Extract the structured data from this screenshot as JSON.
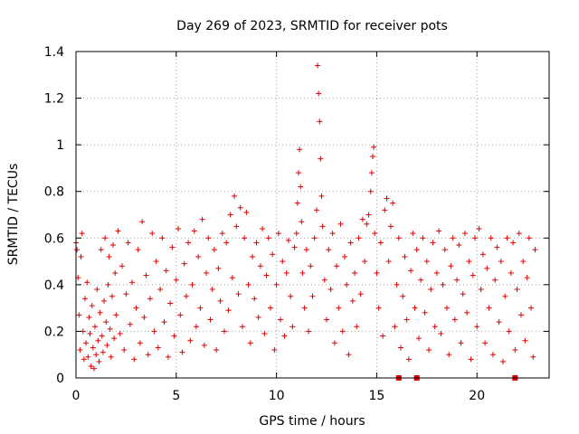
{
  "chart_data": {
    "type": "scatter",
    "title": "Day 269 of 2023, SRMTID for receiver pots",
    "xlabel": "GPS time / hours",
    "ylabel": "SRMTID / TECUs",
    "xlim": [
      0,
      23.6
    ],
    "ylim": [
      0,
      1.4
    ],
    "xticks": [
      0,
      5,
      10,
      15,
      20
    ],
    "yticks": [
      0,
      0.2,
      0.4,
      0.6,
      0.8,
      1,
      1.2,
      1.4
    ],
    "xtick_labels": [
      "0",
      "5",
      "10",
      "15",
      "20"
    ],
    "ytick_labels": [
      "0",
      "0.2",
      "0.4",
      "0.6",
      "0.8",
      "1",
      "1.2",
      "1.4"
    ],
    "grid": true,
    "marker": "+",
    "series_color": "#e00000",
    "flag_color": "#e00000",
    "series": [
      {
        "name": "SRMTID",
        "points": [
          [
            0.0,
            0.58
          ],
          [
            0.05,
            0.55
          ],
          [
            0.1,
            0.43
          ],
          [
            0.15,
            0.27
          ],
          [
            0.2,
            0.12
          ],
          [
            0.25,
            0.52
          ],
          [
            0.3,
            0.62
          ],
          [
            0.35,
            0.2
          ],
          [
            0.4,
            0.08
          ],
          [
            0.45,
            0.34
          ],
          [
            0.5,
            0.15
          ],
          [
            0.55,
            0.41
          ],
          [
            0.6,
            0.09
          ],
          [
            0.65,
            0.26
          ],
          [
            0.7,
            0.19
          ],
          [
            0.75,
            0.05
          ],
          [
            0.8,
            0.31
          ],
          [
            0.85,
            0.13
          ],
          [
            0.9,
            0.04
          ],
          [
            0.95,
            0.22
          ],
          [
            1.0,
            0.1
          ],
          [
            1.05,
            0.38
          ],
          [
            1.1,
            0.16
          ],
          [
            1.15,
            0.07
          ],
          [
            1.2,
            0.28
          ],
          [
            1.25,
            0.55
          ],
          [
            1.3,
            0.18
          ],
          [
            1.35,
            0.11
          ],
          [
            1.4,
            0.33
          ],
          [
            1.45,
            0.6
          ],
          [
            1.5,
            0.24
          ],
          [
            1.55,
            0.14
          ],
          [
            1.6,
            0.4
          ],
          [
            1.65,
            0.52
          ],
          [
            1.7,
            0.21
          ],
          [
            1.75,
            0.09
          ],
          [
            1.8,
            0.35
          ],
          [
            1.85,
            0.57
          ],
          [
            1.9,
            0.17
          ],
          [
            1.95,
            0.45
          ],
          [
            2.0,
            0.27
          ],
          [
            2.1,
            0.63
          ],
          [
            2.2,
            0.19
          ],
          [
            2.3,
            0.48
          ],
          [
            2.4,
            0.12
          ],
          [
            2.5,
            0.36
          ],
          [
            2.6,
            0.58
          ],
          [
            2.7,
            0.23
          ],
          [
            2.8,
            0.41
          ],
          [
            2.9,
            0.08
          ],
          [
            3.0,
            0.3
          ],
          [
            3.1,
            0.55
          ],
          [
            3.2,
            0.15
          ],
          [
            3.3,
            0.67
          ],
          [
            3.4,
            0.26
          ],
          [
            3.5,
            0.44
          ],
          [
            3.6,
            0.1
          ],
          [
            3.7,
            0.34
          ],
          [
            3.8,
            0.62
          ],
          [
            3.9,
            0.2
          ],
          [
            4.0,
            0.5
          ],
          [
            4.1,
            0.13
          ],
          [
            4.2,
            0.38
          ],
          [
            4.3,
            0.6
          ],
          [
            4.4,
            0.24
          ],
          [
            4.5,
            0.46
          ],
          [
            4.6,
            0.09
          ],
          [
            4.7,
            0.32
          ],
          [
            4.8,
            0.56
          ],
          [
            4.9,
            0.18
          ],
          [
            5.0,
            0.42
          ],
          [
            5.1,
            0.64
          ],
          [
            5.2,
            0.27
          ],
          [
            5.3,
            0.11
          ],
          [
            5.4,
            0.49
          ],
          [
            5.5,
            0.35
          ],
          [
            5.6,
            0.58
          ],
          [
            5.7,
            0.16
          ],
          [
            5.8,
            0.4
          ],
          [
            5.9,
            0.63
          ],
          [
            6.0,
            0.22
          ],
          [
            6.1,
            0.52
          ],
          [
            6.2,
            0.3
          ],
          [
            6.3,
            0.68
          ],
          [
            6.4,
            0.14
          ],
          [
            6.5,
            0.45
          ],
          [
            6.6,
            0.6
          ],
          [
            6.7,
            0.25
          ],
          [
            6.8,
            0.38
          ],
          [
            6.9,
            0.55
          ],
          [
            7.0,
            0.12
          ],
          [
            7.1,
            0.47
          ],
          [
            7.2,
            0.33
          ],
          [
            7.3,
            0.62
          ],
          [
            7.4,
            0.2
          ],
          [
            7.5,
            0.58
          ],
          [
            7.6,
            0.29
          ],
          [
            7.7,
            0.7
          ],
          [
            7.8,
            0.43
          ],
          [
            7.9,
            0.78
          ],
          [
            8.0,
            0.65
          ],
          [
            8.1,
            0.36
          ],
          [
            8.2,
            0.73
          ],
          [
            8.3,
            0.22
          ],
          [
            8.4,
            0.6
          ],
          [
            8.5,
            0.71
          ],
          [
            8.6,
            0.4
          ],
          [
            8.7,
            0.15
          ],
          [
            8.8,
            0.52
          ],
          [
            8.9,
            0.34
          ],
          [
            9.0,
            0.58
          ],
          [
            9.1,
            0.26
          ],
          [
            9.2,
            0.48
          ],
          [
            9.3,
            0.64
          ],
          [
            9.4,
            0.19
          ],
          [
            9.5,
            0.44
          ],
          [
            9.6,
            0.6
          ],
          [
            9.7,
            0.3
          ],
          [
            9.8,
            0.53
          ],
          [
            9.9,
            0.12
          ],
          [
            10.0,
            0.4
          ],
          [
            10.1,
            0.62
          ],
          [
            10.2,
            0.25
          ],
          [
            10.3,
            0.5
          ],
          [
            10.4,
            0.18
          ],
          [
            10.5,
            0.45
          ],
          [
            10.6,
            0.59
          ],
          [
            10.7,
            0.35
          ],
          [
            10.8,
            0.22
          ],
          [
            10.9,
            0.56
          ],
          [
            11.0,
            0.62
          ],
          [
            11.05,
            0.75
          ],
          [
            11.1,
            0.88
          ],
          [
            11.15,
            0.98
          ],
          [
            11.2,
            0.82
          ],
          [
            11.25,
            0.67
          ],
          [
            11.3,
            0.45
          ],
          [
            11.4,
            0.3
          ],
          [
            11.5,
            0.55
          ],
          [
            11.6,
            0.2
          ],
          [
            11.7,
            0.48
          ],
          [
            11.8,
            0.35
          ],
          [
            11.9,
            0.6
          ],
          [
            12.0,
            0.72
          ],
          [
            12.05,
            1.34
          ],
          [
            12.1,
            1.22
          ],
          [
            12.15,
            1.1
          ],
          [
            12.2,
            0.94
          ],
          [
            12.25,
            0.78
          ],
          [
            12.3,
            0.65
          ],
          [
            12.4,
            0.42
          ],
          [
            12.5,
            0.25
          ],
          [
            12.6,
            0.55
          ],
          [
            12.7,
            0.38
          ],
          [
            12.8,
            0.62
          ],
          [
            12.9,
            0.15
          ],
          [
            13.0,
            0.48
          ],
          [
            13.1,
            0.3
          ],
          [
            13.2,
            0.66
          ],
          [
            13.3,
            0.2
          ],
          [
            13.4,
            0.52
          ],
          [
            13.5,
            0.4
          ],
          [
            13.6,
            0.1
          ],
          [
            13.7,
            0.58
          ],
          [
            13.8,
            0.33
          ],
          [
            13.9,
            0.45
          ],
          [
            14.0,
            0.22
          ],
          [
            14.1,
            0.6
          ],
          [
            14.2,
            0.36
          ],
          [
            14.3,
            0.68
          ],
          [
            14.4,
            0.5
          ],
          [
            14.5,
            0.66
          ],
          [
            14.6,
            0.7
          ],
          [
            14.7,
            0.8
          ],
          [
            14.75,
            0.88
          ],
          [
            14.8,
            0.95
          ],
          [
            14.85,
            0.99
          ],
          [
            14.9,
            0.62
          ],
          [
            15.0,
            0.45
          ],
          [
            15.1,
            0.3
          ],
          [
            15.2,
            0.58
          ],
          [
            15.3,
            0.18
          ],
          [
            15.4,
            0.72
          ],
          [
            15.5,
            0.77
          ],
          [
            15.6,
            0.5
          ],
          [
            15.7,
            0.65
          ],
          [
            15.8,
            0.75
          ],
          [
            15.9,
            0.22
          ],
          [
            16.0,
            0.4
          ],
          [
            16.1,
            0.6
          ],
          [
            16.2,
            0.13
          ],
          [
            16.3,
            0.35
          ],
          [
            16.4,
            0.52
          ],
          [
            16.5,
            0.25
          ],
          [
            16.6,
            0.08
          ],
          [
            16.7,
            0.46
          ],
          [
            16.8,
            0.62
          ],
          [
            16.9,
            0.3
          ],
          [
            17.0,
            0.55
          ],
          [
            17.1,
            0.17
          ],
          [
            17.2,
            0.42
          ],
          [
            17.3,
            0.6
          ],
          [
            17.4,
            0.28
          ],
          [
            17.5,
            0.5
          ],
          [
            17.6,
            0.12
          ],
          [
            17.7,
            0.38
          ],
          [
            17.8,
            0.58
          ],
          [
            17.9,
            0.22
          ],
          [
            18.0,
            0.45
          ],
          [
            18.1,
            0.63
          ],
          [
            18.2,
            0.19
          ],
          [
            18.3,
            0.4
          ],
          [
            18.4,
            0.55
          ],
          [
            18.5,
            0.3
          ],
          [
            18.6,
            0.1
          ],
          [
            18.7,
            0.48
          ],
          [
            18.8,
            0.6
          ],
          [
            18.9,
            0.25
          ],
          [
            19.0,
            0.42
          ],
          [
            19.1,
            0.57
          ],
          [
            19.2,
            0.15
          ],
          [
            19.3,
            0.36
          ],
          [
            19.4,
            0.62
          ],
          [
            19.5,
            0.28
          ],
          [
            19.6,
            0.5
          ],
          [
            19.7,
            0.08
          ],
          [
            19.8,
            0.44
          ],
          [
            19.9,
            0.6
          ],
          [
            20.0,
            0.22
          ],
          [
            20.1,
            0.64
          ],
          [
            20.2,
            0.38
          ],
          [
            20.3,
            0.53
          ],
          [
            20.4,
            0.15
          ],
          [
            20.5,
            0.47
          ],
          [
            20.6,
            0.3
          ],
          [
            20.7,
            0.6
          ],
          [
            20.8,
            0.1
          ],
          [
            20.9,
            0.42
          ],
          [
            21.0,
            0.56
          ],
          [
            21.1,
            0.24
          ],
          [
            21.2,
            0.5
          ],
          [
            21.3,
            0.07
          ],
          [
            21.4,
            0.35
          ],
          [
            21.5,
            0.6
          ],
          [
            21.6,
            0.2
          ],
          [
            21.7,
            0.45
          ],
          [
            21.8,
            0.58
          ],
          [
            21.9,
            0.12
          ],
          [
            22.0,
            0.38
          ],
          [
            22.1,
            0.62
          ],
          [
            22.2,
            0.27
          ],
          [
            22.3,
            0.5
          ],
          [
            22.4,
            0.16
          ],
          [
            22.5,
            0.43
          ],
          [
            22.6,
            0.6
          ],
          [
            22.7,
            0.3
          ],
          [
            22.8,
            0.09
          ],
          [
            22.9,
            0.55
          ]
        ]
      }
    ],
    "flags_on_axis": [
      16.1,
      17.0,
      21.9
    ]
  }
}
